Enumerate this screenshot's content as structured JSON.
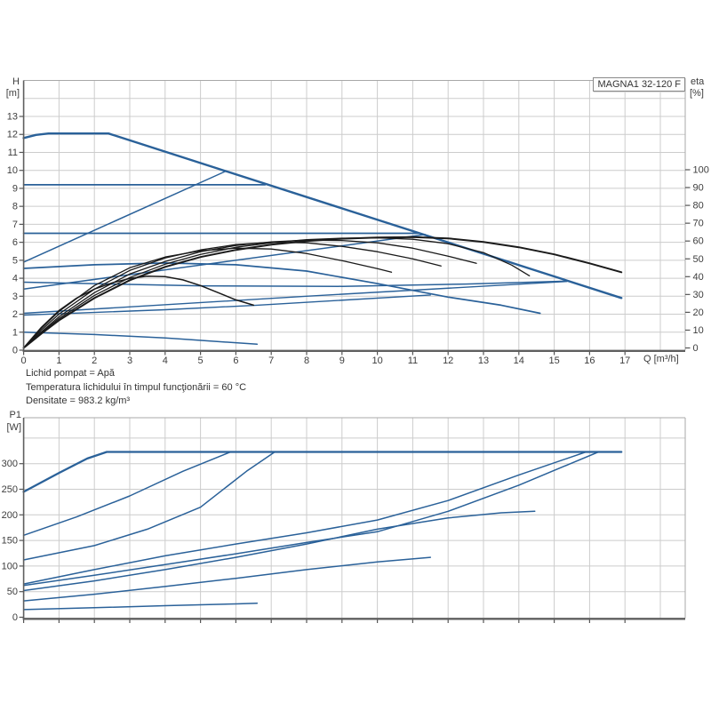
{
  "pump_label": "MAGNA1 32-120 F",
  "info_lines": [
    "Lichid pompat = Apă",
    "Temperatura lichidului în timpul funcţionării = 60 °C",
    "Densitate = 983.2 kg/m³"
  ],
  "labels": {
    "head_axis": "H",
    "head_unit": "[m]",
    "eta_axis": "eta",
    "eta_unit": "[%]",
    "flow_axis": "Q [m³/h]",
    "power_axis": "P1",
    "power_unit": "[W]"
  },
  "colors": {
    "curve_blue": "#2a6199",
    "curve_black": "#1a1a1a",
    "grid": "#cccccc",
    "border": "#a8a8a8",
    "axis_dark": "#5f5f5f",
    "tick": "#555555",
    "text": "#3d3d3d"
  },
  "chart_data": [
    {
      "type": "line",
      "title": "MAGNA1 32-120 F  (H-Q and eta-Q curves)",
      "xlabel": "Q [m³/h]",
      "ylabel_left": "H [m]",
      "ylabel_right": "eta [%]",
      "xlim": [
        0,
        18.7
      ],
      "ylim_left": [
        0,
        15
      ],
      "ylim_right": [
        0,
        150
      ],
      "grid": true,
      "x_ticks": [
        0,
        1,
        2,
        3,
        4,
        5,
        6,
        7,
        8,
        9,
        10,
        11,
        12,
        13,
        14,
        15,
        16,
        17
      ],
      "x_grid": [
        1,
        2,
        3,
        4,
        5,
        6,
        7,
        8,
        9,
        10,
        11,
        12,
        13,
        14,
        15,
        16,
        17,
        18
      ],
      "y_ticks_left": [
        0,
        1,
        2,
        3,
        4,
        5,
        6,
        7,
        8,
        9,
        10,
        11,
        12,
        13
      ],
      "y_grid_left": [
        1,
        2,
        3,
        4,
        5,
        6,
        7,
        8,
        9,
        10,
        11,
        12,
        13,
        14
      ],
      "y_ticks_right": [
        0,
        10,
        20,
        30,
        40,
        50,
        60,
        70,
        80,
        90,
        100
      ],
      "series": [
        {
          "name": "max-speed-curve",
          "axis": "left",
          "color": "blue",
          "width": 2.4,
          "points": [
            [
              0,
              11.8
            ],
            [
              0.35,
              11.97
            ],
            [
              0.7,
              12.05
            ],
            [
              2.4,
              12.05
            ],
            [
              16.9,
              2.9
            ]
          ]
        },
        {
          "name": "const-pressure-high",
          "axis": "left",
          "color": "blue",
          "width": 1.7,
          "points": [
            [
              0,
              9.2
            ],
            [
              6.83,
              9.2
            ]
          ]
        },
        {
          "name": "const-pressure-mid",
          "axis": "left",
          "color": "blue",
          "width": 1.7,
          "points": [
            [
              0,
              6.5
            ],
            [
              11.16,
              6.5
            ]
          ]
        },
        {
          "name": "const-pressure-low",
          "axis": "left",
          "color": "blue",
          "width": 1.5,
          "points": [
            [
              0,
              3.78
            ],
            [
              5,
              3.58
            ],
            [
              9,
              3.55
            ],
            [
              12.5,
              3.68
            ],
            [
              15.42,
              3.84
            ]
          ]
        },
        {
          "name": "prop-pressure-high",
          "axis": "left",
          "color": "blue",
          "width": 1.5,
          "points": [
            [
              0,
              4.9
            ],
            [
              5.72,
              9.96
            ]
          ]
        },
        {
          "name": "prop-pressure-mid",
          "axis": "left",
          "color": "blue",
          "width": 1.5,
          "points": [
            [
              0,
              3.4
            ],
            [
              11.35,
              6.43
            ]
          ]
        },
        {
          "name": "prop-pressure-low-a",
          "axis": "left",
          "color": "blue",
          "width": 1.4,
          "points": [
            [
              0,
              1.95
            ],
            [
              4,
              2.25
            ],
            [
              6.6,
              2.5
            ],
            [
              11.5,
              3.07
            ]
          ]
        },
        {
          "name": "prop-pressure-low-b",
          "axis": "left",
          "color": "blue",
          "width": 1.4,
          "points": [
            [
              0,
              2.05
            ],
            [
              8,
              3.0
            ],
            [
              15.35,
              3.82
            ]
          ]
        },
        {
          "name": "mid-speed-curve",
          "axis": "left",
          "color": "blue",
          "width": 1.7,
          "points": [
            [
              0,
              4.55
            ],
            [
              2,
              4.75
            ],
            [
              4,
              4.85
            ],
            [
              6,
              4.75
            ],
            [
              8,
              4.4
            ],
            [
              10,
              3.7
            ],
            [
              12,
              2.95
            ],
            [
              13.5,
              2.5
            ],
            [
              14.6,
              2.05
            ]
          ]
        },
        {
          "name": "min-speed-curve",
          "axis": "left",
          "color": "blue",
          "width": 1.5,
          "points": [
            [
              0,
              1.0
            ],
            [
              2,
              0.87
            ],
            [
              4,
              0.68
            ],
            [
              6.6,
              0.33
            ]
          ]
        },
        {
          "name": "eta-max-speed",
          "axis": "right",
          "color": "black",
          "width": 2.0,
          "points": [
            [
              0,
              0
            ],
            [
              0.5,
              8
            ],
            [
              1,
              15.5
            ],
            [
              2,
              28
            ],
            [
              3,
              38
            ],
            [
              4,
              45.5
            ],
            [
              5,
              51
            ],
            [
              6,
              55
            ],
            [
              7,
              58
            ],
            [
              8,
              60
            ],
            [
              9,
              61.3
            ],
            [
              10,
              62
            ],
            [
              11,
              62.2
            ],
            [
              12,
              61.5
            ],
            [
              13,
              59.5
            ],
            [
              14,
              56.5
            ],
            [
              15,
              52.5
            ],
            [
              16,
              47.5
            ],
            [
              16.9,
              42.5
            ]
          ]
        },
        {
          "name": "eta-speed-2",
          "axis": "right",
          "color": "black",
          "width": 1.3,
          "points": [
            [
              0,
              0
            ],
            [
              0.5,
              8.5
            ],
            [
              1,
              16.5
            ],
            [
              2,
              29.5
            ],
            [
              3,
              39.5
            ],
            [
              4,
              47
            ],
            [
              5,
              52.5
            ],
            [
              6,
              56.5
            ],
            [
              7,
              59
            ],
            [
              8,
              60.8
            ],
            [
              9,
              61.6
            ],
            [
              10,
              61.8
            ],
            [
              11,
              61
            ],
            [
              12,
              58.5
            ],
            [
              13,
              53.5
            ],
            [
              13.8,
              46.5
            ],
            [
              14.3,
              40.5
            ]
          ]
        },
        {
          "name": "eta-speed-3",
          "axis": "right",
          "color": "black",
          "width": 1.3,
          "points": [
            [
              0,
              0
            ],
            [
              0.5,
              9
            ],
            [
              1,
              17.5
            ],
            [
              2,
              31
            ],
            [
              3,
              41.5
            ],
            [
              4,
              48.5
            ],
            [
              5,
              54
            ],
            [
              6,
              57.5
            ],
            [
              7,
              59.5
            ],
            [
              8,
              60.5
            ],
            [
              9,
              60.3
            ],
            [
              10,
              59
            ],
            [
              11,
              56
            ],
            [
              12,
              51.5
            ],
            [
              12.8,
              47.5
            ]
          ]
        },
        {
          "name": "eta-speed-4",
          "axis": "right",
          "color": "black",
          "width": 1.3,
          "points": [
            [
              0,
              0
            ],
            [
              0.5,
              10
            ],
            [
              1,
              19
            ],
            [
              2,
              33
            ],
            [
              3,
              43.5
            ],
            [
              4,
              50.5
            ],
            [
              5,
              55
            ],
            [
              6,
              58
            ],
            [
              7,
              59.3
            ],
            [
              8,
              59
            ],
            [
              9,
              57
            ],
            [
              10,
              54
            ],
            [
              11,
              50
            ],
            [
              11.8,
              46
            ]
          ]
        },
        {
          "name": "eta-speed-5",
          "axis": "right",
          "color": "black",
          "width": 1.3,
          "points": [
            [
              0,
              0
            ],
            [
              0.5,
              11
            ],
            [
              1,
              20.5
            ],
            [
              2,
              35
            ],
            [
              3,
              45
            ],
            [
              4,
              51
            ],
            [
              5,
              54.5
            ],
            [
              6,
              56
            ],
            [
              7,
              55.5
            ],
            [
              8,
              53
            ],
            [
              9,
              49
            ],
            [
              10,
              44.5
            ],
            [
              10.4,
              42.5
            ]
          ]
        },
        {
          "name": "eta-min-speed",
          "axis": "right",
          "color": "black",
          "width": 1.5,
          "points": [
            [
              0,
              0
            ],
            [
              0.5,
              11.5
            ],
            [
              1,
              21
            ],
            [
              1.5,
              28
            ],
            [
              2,
              33
            ],
            [
              2.5,
              36.5
            ],
            [
              3,
              39
            ],
            [
              3.5,
              40.3
            ],
            [
              4,
              40
            ],
            [
              4.5,
              38.2
            ],
            [
              5,
              35
            ],
            [
              5.5,
              31
            ],
            [
              6,
              27
            ],
            [
              6.5,
              24
            ]
          ]
        }
      ]
    },
    {
      "type": "line",
      "title": "P1-Q power curves",
      "xlabel": "Q [m³/h]",
      "ylabel_left": "P1 [W]",
      "xlim": [
        0,
        18.7
      ],
      "ylim_left": [
        0,
        390
      ],
      "grid": true,
      "x_grid": [
        1,
        2,
        3,
        4,
        5,
        6,
        7,
        8,
        9,
        10,
        11,
        12,
        13,
        14,
        15,
        16,
        17,
        18
      ],
      "x_tick_marks": [
        0,
        1,
        2,
        3,
        4,
        5,
        6,
        7,
        8,
        9,
        10,
        11,
        12,
        13,
        14,
        15,
        16,
        17
      ],
      "y_ticks_left": [
        0,
        50,
        100,
        150,
        200,
        250,
        300
      ],
      "y_grid_left": [
        50,
        100,
        150,
        200,
        250,
        300,
        350
      ],
      "series": [
        {
          "name": "power-max-speed",
          "axis": "left",
          "color": "blue",
          "width": 2.3,
          "points": [
            [
              0,
              245
            ],
            [
              1,
              282
            ],
            [
              1.8,
              310
            ],
            [
              2.35,
              323
            ],
            [
              16.9,
              323
            ]
          ]
        },
        {
          "name": "power-const-pressure-high",
          "axis": "left",
          "color": "blue",
          "width": 1.5,
          "points": [
            [
              0,
              160
            ],
            [
              1.5,
              196
            ],
            [
              3,
              237
            ],
            [
              4.5,
              285
            ],
            [
              5.85,
              323
            ]
          ]
        },
        {
          "name": "power-const-pressure-mid",
          "axis": "left",
          "color": "blue",
          "width": 1.5,
          "points": [
            [
              0,
              112
            ],
            [
              2,
              140
            ],
            [
              3.5,
              172
            ],
            [
              5,
              215
            ],
            [
              6.3,
              285
            ],
            [
              7.1,
              323
            ]
          ]
        },
        {
          "name": "power-riser-1",
          "axis": "left",
          "color": "blue",
          "width": 1.5,
          "points": [
            [
              0,
              65
            ],
            [
              2,
              93
            ],
            [
              4,
              120
            ],
            [
              6,
              143
            ],
            [
              8,
              165
            ],
            [
              10,
              190
            ],
            [
              12,
              228
            ],
            [
              14,
              278
            ],
            [
              15.9,
              323
            ]
          ]
        },
        {
          "name": "power-riser-2",
          "axis": "left",
          "color": "blue",
          "width": 1.5,
          "points": [
            [
              0,
              62
            ],
            [
              2,
              82
            ],
            [
              4,
              103
            ],
            [
              6,
              124
            ],
            [
              8,
              146
            ],
            [
              10,
              167
            ],
            [
              12,
              207
            ],
            [
              14,
              258
            ],
            [
              16.25,
              323
            ]
          ]
        },
        {
          "name": "power-mid-speed",
          "axis": "left",
          "color": "blue",
          "width": 1.5,
          "points": [
            [
              0,
              52
            ],
            [
              2,
              71
            ],
            [
              4,
              93
            ],
            [
              6,
              117
            ],
            [
              8,
              143
            ],
            [
              10,
              172
            ],
            [
              12,
              194
            ],
            [
              13.5,
              204
            ],
            [
              14.45,
              207
            ]
          ]
        },
        {
          "name": "power-prop-low",
          "axis": "left",
          "color": "blue",
          "width": 1.5,
          "points": [
            [
              0,
              32
            ],
            [
              2,
              45
            ],
            [
              4,
              60
            ],
            [
              6,
              76
            ],
            [
              8,
              93
            ],
            [
              10,
              108
            ],
            [
              11.5,
              117
            ]
          ]
        },
        {
          "name": "power-min-speed",
          "axis": "left",
          "color": "blue",
          "width": 1.5,
          "points": [
            [
              0,
              15
            ],
            [
              2,
              18.5
            ],
            [
              4,
              22.5
            ],
            [
              6,
              26
            ],
            [
              6.6,
              27.5
            ]
          ]
        }
      ]
    }
  ]
}
